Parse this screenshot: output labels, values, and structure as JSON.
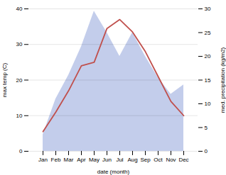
{
  "chart_data": {
    "type": "line",
    "xlabel": "date (month)",
    "ylabel": "max temp (C)",
    "y2label": "med. precipitation (kg/m2)",
    "categories": [
      "Jan",
      "Feb",
      "Mar",
      "Apr",
      "May",
      "Jun",
      "Jul",
      "Aug",
      "Sep",
      "Oct",
      "Nov",
      "Dec"
    ],
    "series": [
      {
        "type": "area",
        "axis": "y2",
        "color": "#b8c4e8",
        "values": [
          3.5,
          11.0,
          16.0,
          22.0,
          29.5,
          25.0,
          20.0,
          25.0,
          20.0,
          15.5,
          12.0,
          14.0
        ]
      },
      {
        "type": "line",
        "color": "#c0504d",
        "values": [
          5.5,
          11.0,
          17.0,
          24.0,
          25.0,
          34.5,
          37.0,
          33.5,
          28.0,
          21.0,
          14.0,
          10.0
        ]
      }
    ],
    "ylim": [
      0,
      40
    ],
    "yticks": [
      0,
      10,
      20,
      30,
      40
    ],
    "y2lim": [
      0,
      30
    ],
    "y2ticks": [
      0,
      5,
      10,
      15,
      20,
      25,
      30
    ],
    "grid": true
  }
}
